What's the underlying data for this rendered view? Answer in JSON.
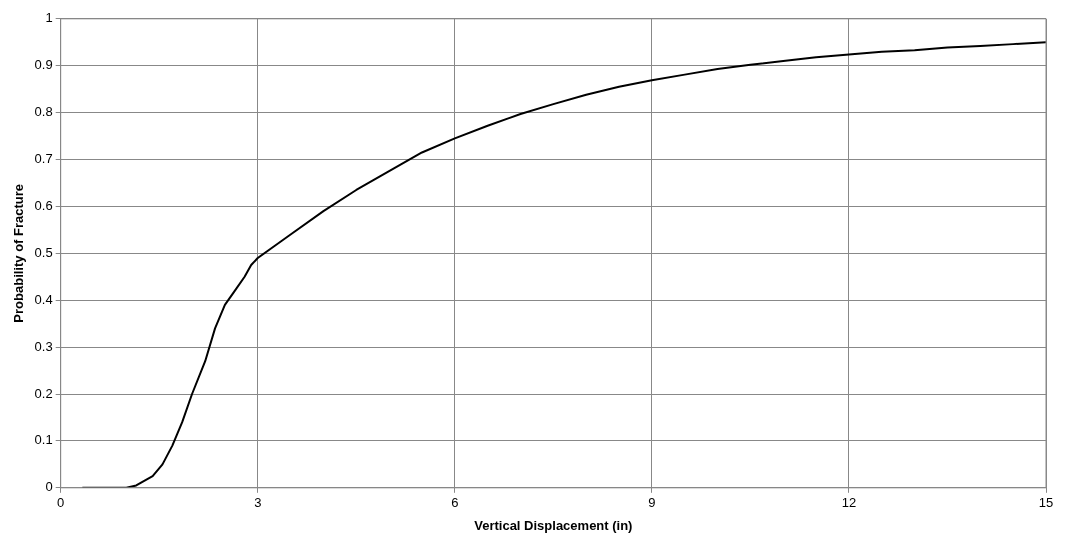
{
  "chart_data": {
    "type": "line",
    "xlabel": "Vertical Displacement (in)",
    "ylabel": "Probability of Fracture",
    "series": [
      {
        "color": "#000000",
        "x": [
          0.33,
          1.0,
          1.15,
          1.4,
          1.55,
          1.7,
          1.85,
          2.0,
          2.2,
          2.35,
          2.5,
          2.65,
          2.8,
          2.9,
          3.0,
          3.25,
          3.5,
          4,
          4.5,
          5,
          5.5,
          6,
          6.5,
          7,
          7.5,
          8,
          8.5,
          9,
          9.5,
          10,
          10.5,
          11,
          11.5,
          12,
          12.5,
          13,
          13.5,
          14,
          14.5,
          15
        ],
        "values": [
          0,
          0,
          0.005,
          0.025,
          0.05,
          0.09,
          0.14,
          0.2,
          0.27,
          0.34,
          0.39,
          0.42,
          0.45,
          0.475,
          0.49,
          0.515,
          0.54,
          0.59,
          0.635,
          0.675,
          0.715,
          0.745,
          0.772,
          0.797,
          0.818,
          0.838,
          0.855,
          0.869,
          0.881,
          0.893,
          0.902,
          0.91,
          0.918,
          0.924,
          0.93,
          0.933,
          0.939,
          0.942,
          0.946,
          0.95
        ]
      }
    ],
    "xlim": [
      0,
      15
    ],
    "xticks": [
      0,
      3,
      6,
      9,
      12,
      15
    ],
    "ylim": [
      0,
      1
    ],
    "yticks": [
      0,
      0.1,
      0.2,
      0.3,
      0.4,
      0.5,
      0.6,
      0.7,
      0.8,
      0.9,
      1
    ],
    "grid": true,
    "marker": "none",
    "line_style": "solid",
    "legend": false
  }
}
